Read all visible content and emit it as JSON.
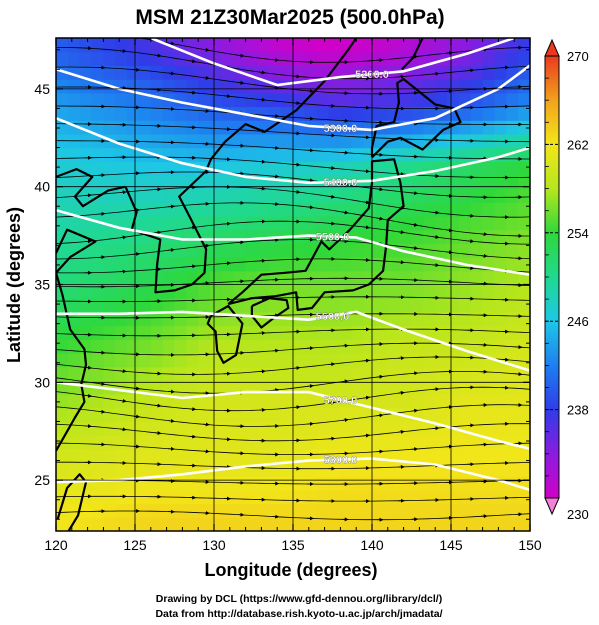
{
  "title": "MSM 21Z30Mar2025 (500.0hPa)",
  "xlabel": "Longitude (degrees)",
  "ylabel": "Latitude  (degrees)",
  "credit_line1": "Drawing by DCL (https://www.gfd-dennou.org/library/dcl/)",
  "credit_line2": "Data from http://database.rish.kyoto-u.ac.jp/arch/jmadata/",
  "chart_data": {
    "type": "heatmap",
    "title": "MSM 21Z30Mar2025 (500.0hPa)",
    "xlabel": "Longitude (degrees)",
    "ylabel": "Latitude  (degrees)",
    "xlim": [
      120,
      150
    ],
    "ylim": [
      22.4,
      47.6
    ],
    "xticks": [
      120,
      125,
      130,
      135,
      140,
      145,
      150
    ],
    "xtick_labels": [
      "120",
      "125",
      "130",
      "135",
      "140",
      "145",
      "150"
    ],
    "yticks": [
      25,
      30,
      35,
      40,
      45
    ],
    "ytick_labels": [
      "25",
      "30",
      "35",
      "40",
      "45"
    ],
    "colorbar": {
      "range": [
        230,
        270
      ],
      "ticks": [
        230,
        238,
        246,
        254,
        262,
        270
      ],
      "tick_labels": [
        "230",
        "238",
        "246",
        "254",
        "262",
        "270"
      ]
    },
    "temperature_samples": [
      {
        "lat": 47,
        "lon_vals": [
          [
            120,
            240
          ],
          [
            126,
            237
          ],
          [
            130,
            234
          ],
          [
            134,
            231
          ],
          [
            137,
            230
          ],
          [
            141,
            231
          ],
          [
            146,
            234
          ],
          [
            150,
            238
          ]
        ]
      },
      {
        "lat": 44,
        "lon_vals": [
          [
            120,
            244
          ],
          [
            126,
            242
          ],
          [
            130,
            240
          ],
          [
            134,
            239
          ],
          [
            138,
            237
          ],
          [
            142,
            238
          ],
          [
            146,
            240
          ],
          [
            150,
            243
          ]
        ]
      },
      {
        "lat": 41,
        "lon_vals": [
          [
            120,
            247
          ],
          [
            126,
            246
          ],
          [
            130,
            246
          ],
          [
            134,
            247
          ],
          [
            138,
            248
          ],
          [
            142,
            250
          ],
          [
            146,
            252
          ],
          [
            150,
            254
          ]
        ]
      },
      {
        "lat": 38,
        "lon_vals": [
          [
            120,
            249
          ],
          [
            126,
            250
          ],
          [
            130,
            251
          ],
          [
            134,
            252
          ],
          [
            138,
            253
          ],
          [
            142,
            254
          ],
          [
            146,
            255
          ],
          [
            150,
            256
          ]
        ]
      },
      {
        "lat": 35,
        "lon_vals": [
          [
            120,
            251
          ],
          [
            126,
            253
          ],
          [
            130,
            255
          ],
          [
            134,
            256
          ],
          [
            138,
            256
          ],
          [
            142,
            256
          ],
          [
            146,
            257
          ],
          [
            150,
            258
          ]
        ]
      },
      {
        "lat": 32,
        "lon_vals": [
          [
            120,
            254
          ],
          [
            126,
            256
          ],
          [
            130,
            258
          ],
          [
            134,
            258
          ],
          [
            138,
            258
          ],
          [
            142,
            259
          ],
          [
            146,
            259
          ],
          [
            150,
            260
          ]
        ]
      },
      {
        "lat": 29,
        "lon_vals": [
          [
            120,
            257
          ],
          [
            126,
            259
          ],
          [
            130,
            260
          ],
          [
            134,
            260
          ],
          [
            138,
            260
          ],
          [
            142,
            260
          ],
          [
            146,
            261
          ],
          [
            150,
            261
          ]
        ]
      },
      {
        "lat": 26,
        "lon_vals": [
          [
            120,
            260
          ],
          [
            126,
            261
          ],
          [
            130,
            261
          ],
          [
            134,
            261
          ],
          [
            138,
            262
          ],
          [
            142,
            262
          ],
          [
            146,
            262
          ],
          [
            150,
            262
          ]
        ]
      },
      {
        "lat": 23,
        "lon_vals": [
          [
            120,
            262
          ],
          [
            126,
            263
          ],
          [
            130,
            263
          ],
          [
            134,
            263
          ],
          [
            138,
            263
          ],
          [
            142,
            263
          ],
          [
            146,
            263
          ],
          [
            150,
            263
          ]
        ]
      }
    ],
    "height_contours": [
      {
        "level": 5200,
        "label": "5200.0",
        "points": [
          [
            126,
            47.6
          ],
          [
            130,
            46.3
          ],
          [
            134,
            45.2
          ],
          [
            138,
            45.6
          ],
          [
            142,
            45.9
          ],
          [
            146,
            46.8
          ],
          [
            149,
            47.6
          ]
        ]
      },
      {
        "level": 5300,
        "label": "5300.0",
        "points": [
          [
            120,
            46.0
          ],
          [
            124,
            45.0
          ],
          [
            128,
            44.3
          ],
          [
            132,
            43.7
          ],
          [
            136,
            43.1
          ],
          [
            140,
            42.9
          ],
          [
            144,
            43.5
          ],
          [
            148,
            45.0
          ],
          [
            150,
            46.2
          ]
        ]
      },
      {
        "level": 5400,
        "label": "5400.0",
        "points": [
          [
            120,
            43.5
          ],
          [
            124,
            42.2
          ],
          [
            128,
            41.2
          ],
          [
            132,
            40.5
          ],
          [
            136,
            40.2
          ],
          [
            140,
            40.3
          ],
          [
            144,
            40.8
          ],
          [
            148,
            41.5
          ],
          [
            150,
            42.0
          ]
        ]
      },
      {
        "level": 5500,
        "label": "5500.0",
        "points": [
          [
            120,
            38.8
          ],
          [
            124,
            37.9
          ],
          [
            128,
            37.3
          ],
          [
            132,
            37.3
          ],
          [
            136,
            37.5
          ],
          [
            139,
            37.4
          ],
          [
            142,
            36.7
          ],
          [
            146,
            36.0
          ],
          [
            150,
            35.5
          ]
        ]
      },
      {
        "level": 5600,
        "label": "5600.0",
        "points": [
          [
            120,
            33.5
          ],
          [
            124,
            33.5
          ],
          [
            128,
            33.6
          ],
          [
            132,
            33.4
          ],
          [
            136,
            33.2
          ],
          [
            139,
            33.6
          ],
          [
            142,
            32.7
          ],
          [
            146,
            31.6
          ],
          [
            150,
            30.6
          ]
        ]
      },
      {
        "level": 5700,
        "label": "5700.0",
        "points": [
          [
            120,
            30.0
          ],
          [
            124,
            29.6
          ],
          [
            128,
            29.2
          ],
          [
            132,
            29.5
          ],
          [
            136,
            29.5
          ],
          [
            140,
            28.7
          ],
          [
            144,
            27.9
          ],
          [
            148,
            27.0
          ],
          [
            150,
            26.6
          ]
        ]
      },
      {
        "level": 5800,
        "label": "5800.0",
        "points": [
          [
            120,
            24.9
          ],
          [
            124,
            25.0
          ],
          [
            128,
            25.3
          ],
          [
            132,
            25.7
          ],
          [
            136,
            26.0
          ],
          [
            140,
            26.1
          ],
          [
            144,
            25.8
          ],
          [
            148,
            25.0
          ],
          [
            150,
            24.5
          ]
        ]
      }
    ],
    "wind": "streamlines with arrows, predominantly westerly (west to east)"
  }
}
